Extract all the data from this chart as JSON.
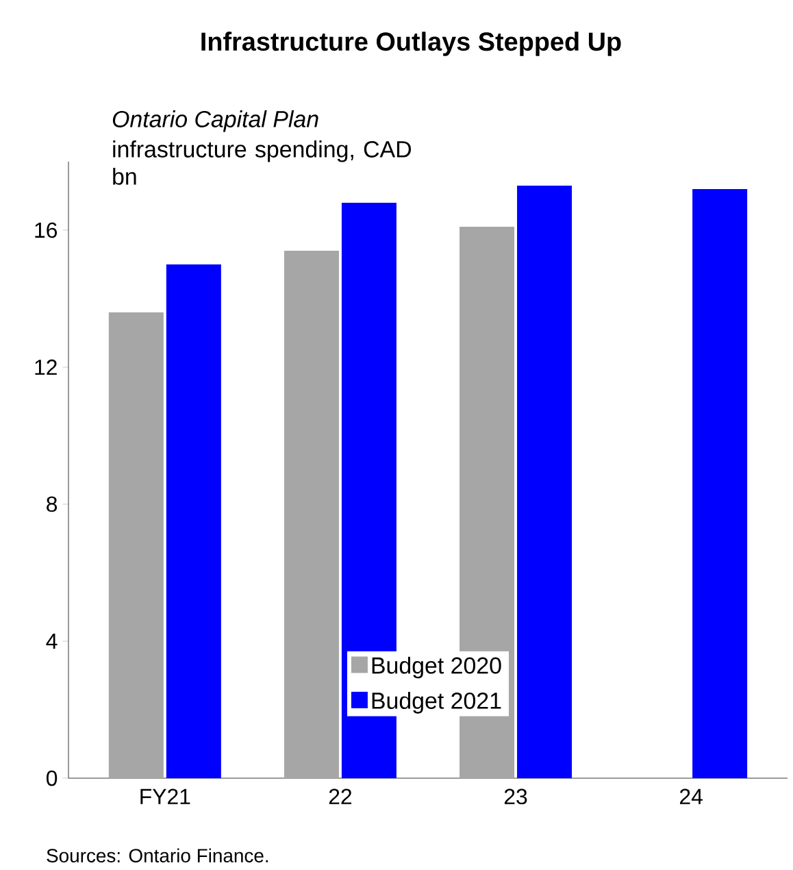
{
  "chart_data": {
    "type": "bar",
    "title": "Infrastructure Outlays  Stepped Up",
    "annotations": [
      "Ontario Capital Plan",
      "infrastructure spending, CAD bn",
      "Sources: Ontario Finance."
    ],
    "categories": [
      "FY21",
      "22",
      "23",
      "24"
    ],
    "series": [
      {
        "name": "Budget 2020",
        "color": "#a6a6a6",
        "values": [
          13.6,
          15.4,
          16.1,
          null
        ]
      },
      {
        "name": "Budget 2021",
        "color": "#0000ff",
        "values": [
          15.0,
          16.8,
          17.3,
          17.2
        ]
      }
    ],
    "ylim": [
      0,
      18
    ],
    "yticks": [
      0,
      4,
      8,
      12,
      16
    ],
    "legend": "bottom",
    "grid": false
  }
}
